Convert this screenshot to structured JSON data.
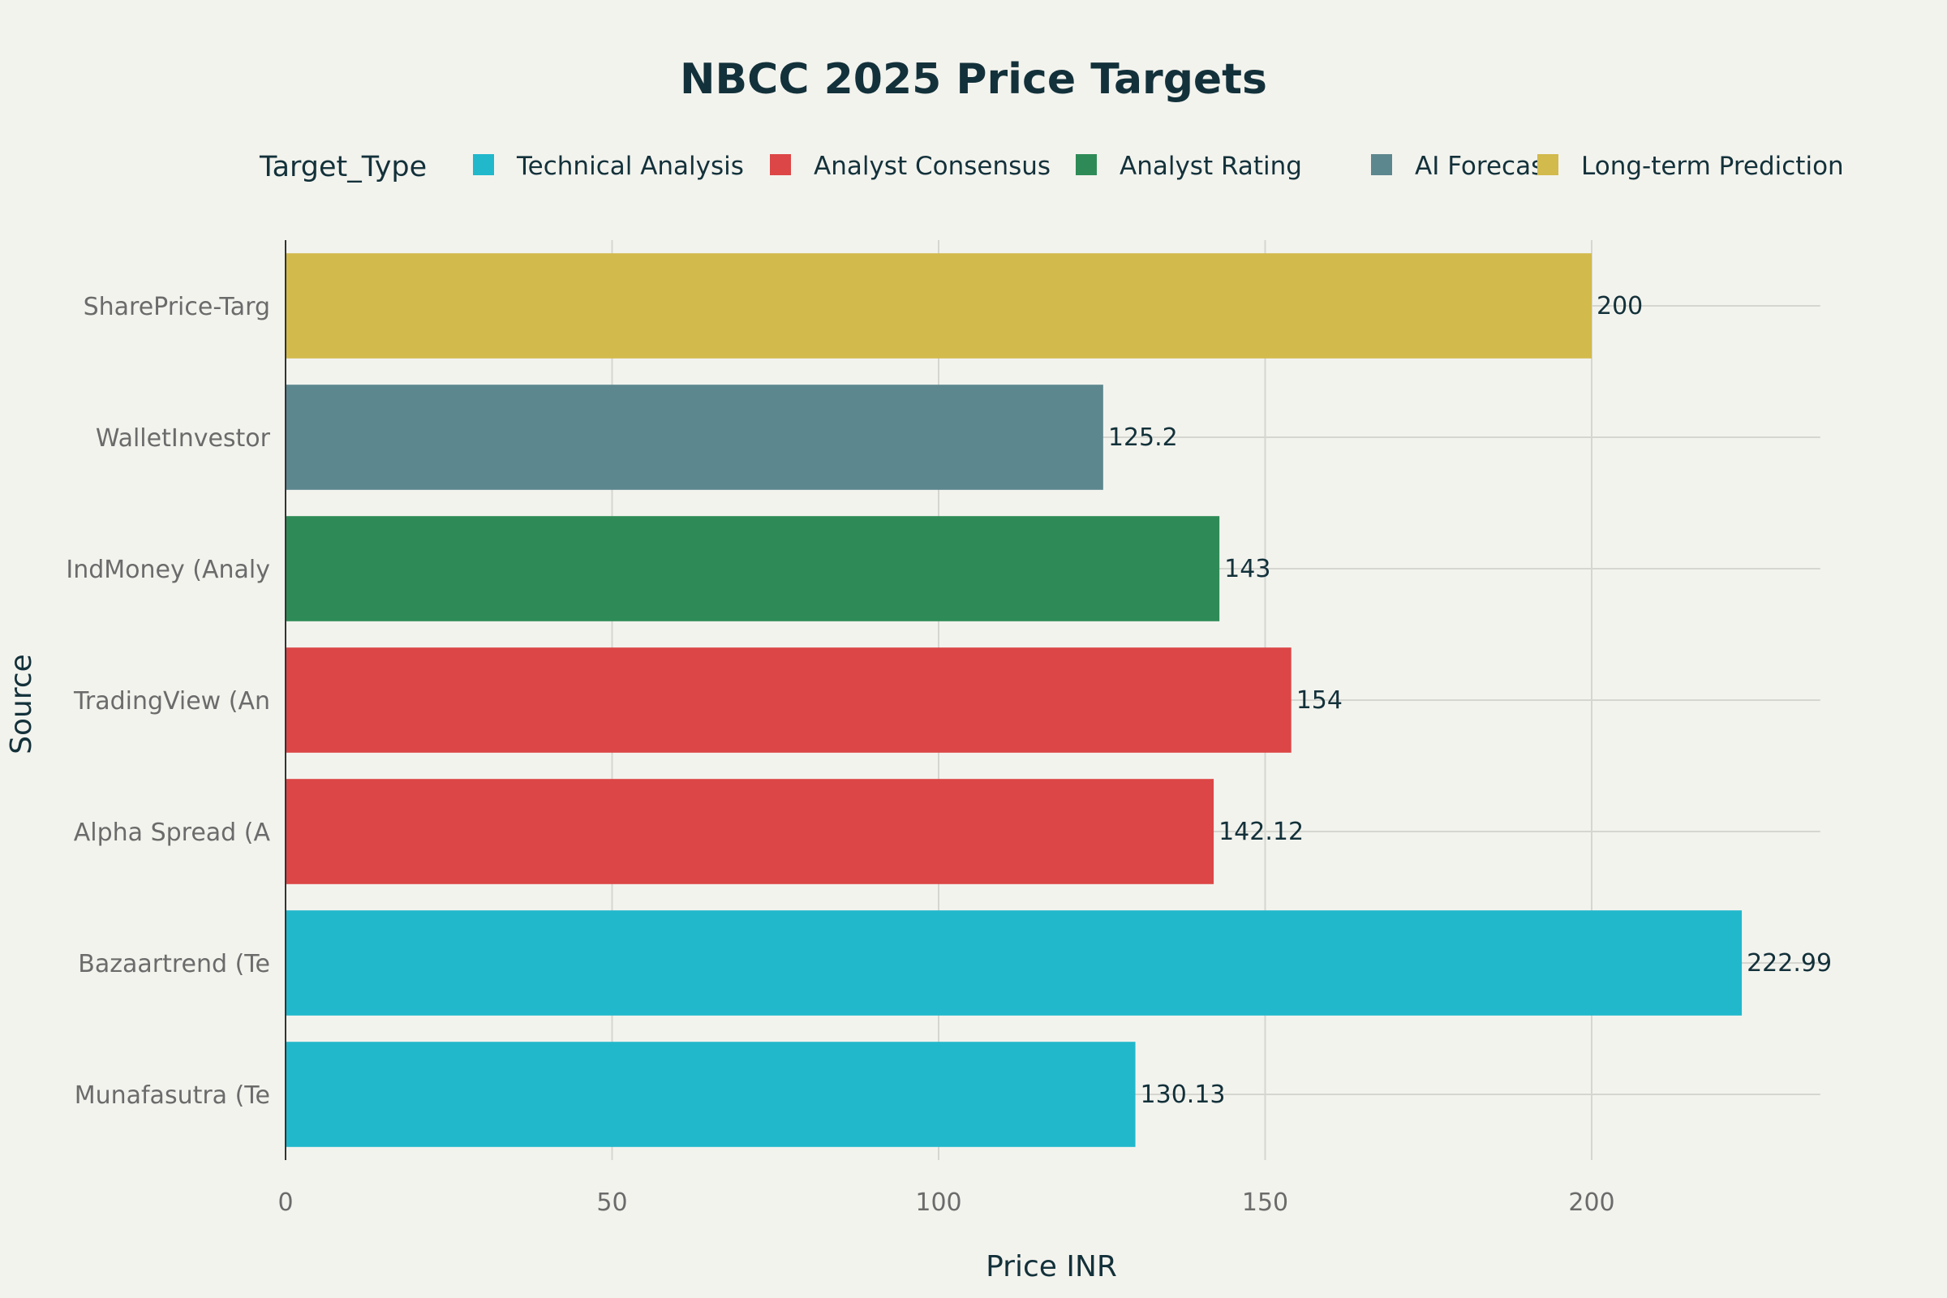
{
  "chart_data": {
    "type": "bar",
    "orientation": "horizontal",
    "title": "NBCC 2025 Price Targets",
    "xlabel": "Price INR",
    "ylabel": "Source",
    "xlim": [
      0,
      235
    ],
    "xticks": [
      0,
      50,
      100,
      150,
      200
    ],
    "grid": true,
    "legend": {
      "title": "Target_Type",
      "placement": "top",
      "entries": [
        {
          "name": "Technical Analysis",
          "color": "#21b8cc"
        },
        {
          "name": "Analyst Consensus",
          "color": "#dc4646"
        },
        {
          "name": "Analyst Rating",
          "color": "#2e8b57"
        },
        {
          "name": "AI Forecast",
          "color": "#5d878f"
        },
        {
          "name": "Long-term Prediction",
          "color": "#d2ba4c"
        }
      ]
    },
    "bars": [
      {
        "category": "SharePrice-Targ",
        "value": 200,
        "label": "200",
        "type": "Long-term Prediction"
      },
      {
        "category": "WalletInvestor",
        "value": 125.2,
        "label": "125.2",
        "type": "AI Forecast"
      },
      {
        "category": "IndMoney (Analy",
        "value": 143,
        "label": "143",
        "type": "Analyst Rating"
      },
      {
        "category": "TradingView (An",
        "value": 154,
        "label": "154",
        "type": "Analyst Consensus"
      },
      {
        "category": "Alpha Spread (A",
        "value": 142.12,
        "label": "142.12",
        "type": "Analyst Consensus"
      },
      {
        "category": "Bazaartrend (Te",
        "value": 222.99,
        "label": "222.99",
        "type": "Technical Analysis"
      },
      {
        "category": "Munafasutra (Te",
        "value": 130.13,
        "label": "130.13",
        "type": "Technical Analysis"
      }
    ]
  }
}
